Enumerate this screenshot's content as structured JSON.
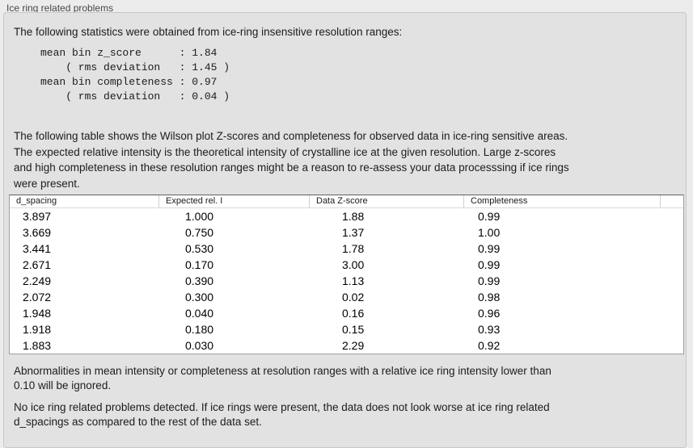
{
  "panel": {
    "title": "Ice ring related problems"
  },
  "intro": "The following statistics were obtained from ice-ring insensitive resolution ranges:",
  "stats_block": {
    "lines": [
      "mean bin z_score      : 1.84",
      "    ( rms deviation   : 1.45 )",
      "mean bin completeness : 0.97",
      "    ( rms deviation   : 0.04 )"
    ],
    "mean_bin_z_score": "1.84",
    "z_score_rms_deviation": "1.45",
    "mean_bin_completeness": "0.97",
    "completeness_rms_deviation": "0.04"
  },
  "table_description": {
    "lines": [
      "The following table shows the Wilson plot Z-scores and completeness for observed data in ice-ring sensitive areas.",
      "The expected relative intensity is the theoretical intensity of crystalline ice at the given resolution. Large z-scores",
      "and high completeness in these resolution ranges might be a reason to re-assess your data processsing if ice rings",
      "were present."
    ]
  },
  "table": {
    "columns": [
      "d_spacing",
      "Expected rel. I",
      "Data Z-score",
      "Completeness"
    ],
    "rows": [
      [
        "3.897",
        "1.000",
        "1.88",
        "0.99"
      ],
      [
        "3.669",
        "0.750",
        "1.37",
        "1.00"
      ],
      [
        "3.441",
        "0.530",
        "1.78",
        "0.99"
      ],
      [
        "2.671",
        "0.170",
        "3.00",
        "0.99"
      ],
      [
        "2.249",
        "0.390",
        "1.13",
        "0.99"
      ],
      [
        "2.072",
        "0.300",
        "0.02",
        "0.98"
      ],
      [
        "1.948",
        "0.040",
        "0.16",
        "0.96"
      ],
      [
        "1.918",
        "0.180",
        "0.15",
        "0.93"
      ],
      [
        "1.883",
        "0.030",
        "2.29",
        "0.92"
      ]
    ]
  },
  "ignore_note": {
    "lines": [
      "Abnormalities in mean intensity or completeness at resolution ranges with a relative ice ring intensity lower than",
      "0.10 will be ignored."
    ]
  },
  "conclusion": {
    "lines": [
      "No ice ring related problems detected. If ice rings were present, the data does not look worse at ice ring related",
      "d_spacings as compared to the rest of the data set."
    ]
  },
  "colors": {
    "page_bg": "#ececec",
    "panel_bg": "#e2e2e2",
    "panel_border": "#c7c7c7",
    "table_bg": "#ffffff",
    "table_border": "#9e9e9e",
    "text": "#1c1c1c"
  }
}
